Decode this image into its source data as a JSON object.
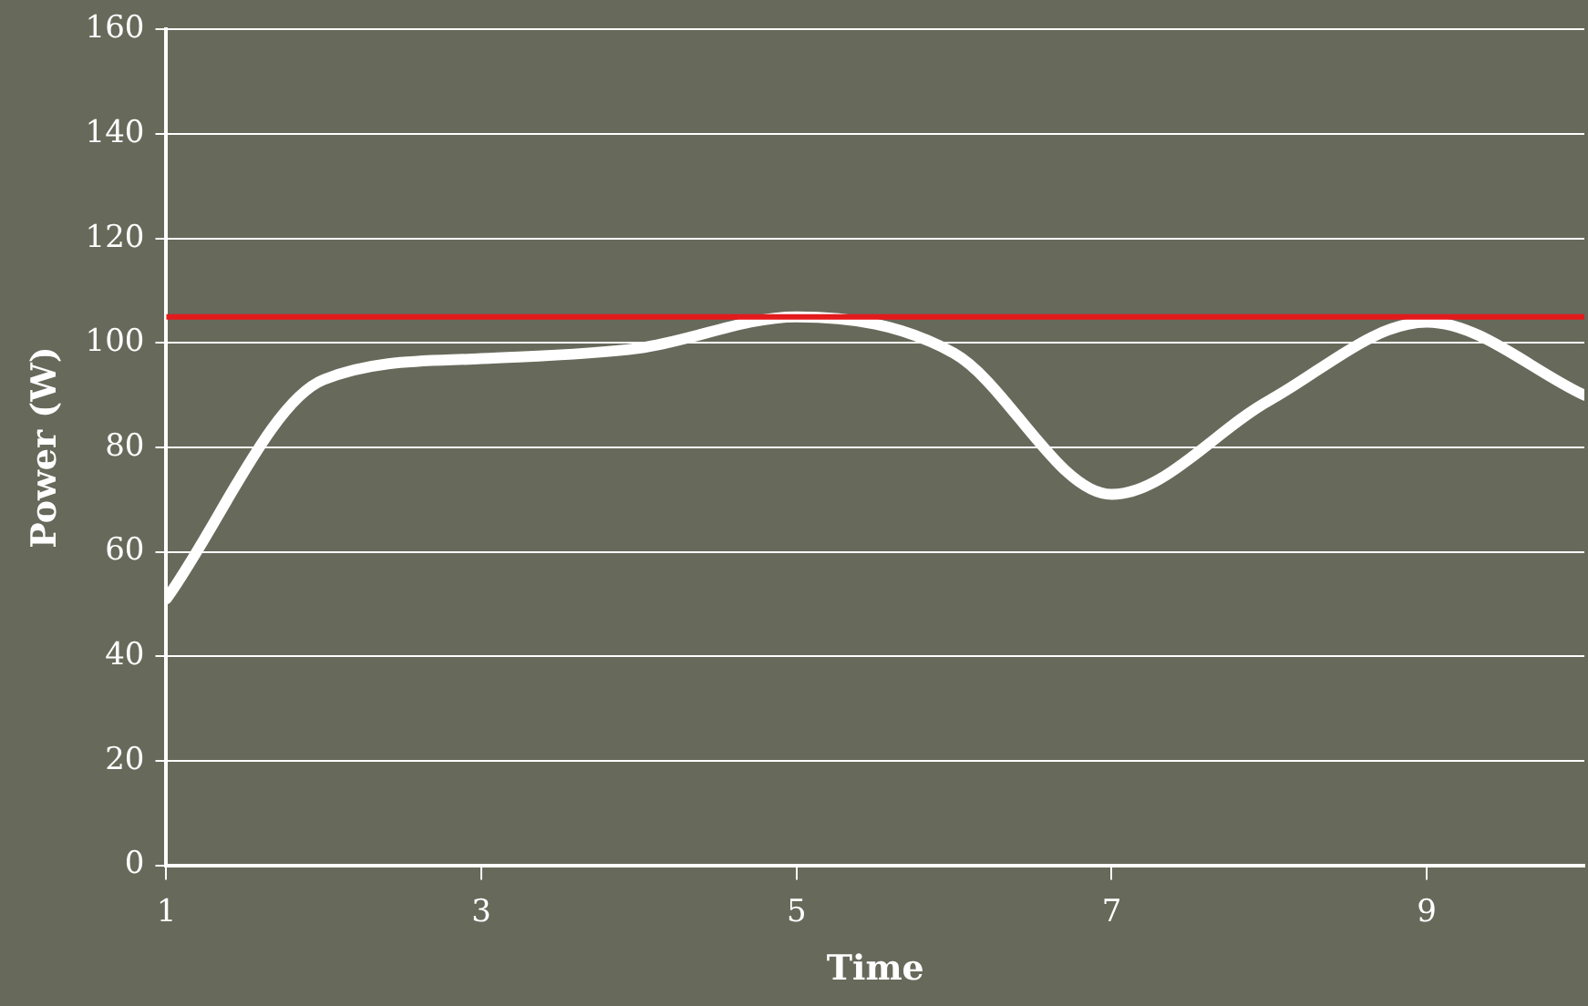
{
  "chart_data": {
    "type": "line",
    "xlabel": "Time",
    "ylabel": "Power (W)",
    "x": [
      1,
      2,
      3,
      4,
      5,
      6,
      7,
      8,
      9,
      10
    ],
    "series": [
      {
        "color": "#ffffff",
        "values": [
          51,
          93,
          97,
          99,
          105,
          98,
          71,
          89,
          104,
          90
        ]
      }
    ],
    "xlim": [
      1,
      10
    ],
    "xticks": [
      1,
      3,
      5,
      7,
      9
    ],
    "ylim": [
      0,
      160
    ],
    "yticks": [
      0,
      20,
      40,
      60,
      80,
      100,
      120,
      140,
      160
    ],
    "grid": "y",
    "legend": false,
    "marker": "none",
    "line_style": "solid",
    "ref_lines": [
      {
        "axis": "y",
        "value": 105,
        "color": "#e31a1c"
      }
    ]
  }
}
